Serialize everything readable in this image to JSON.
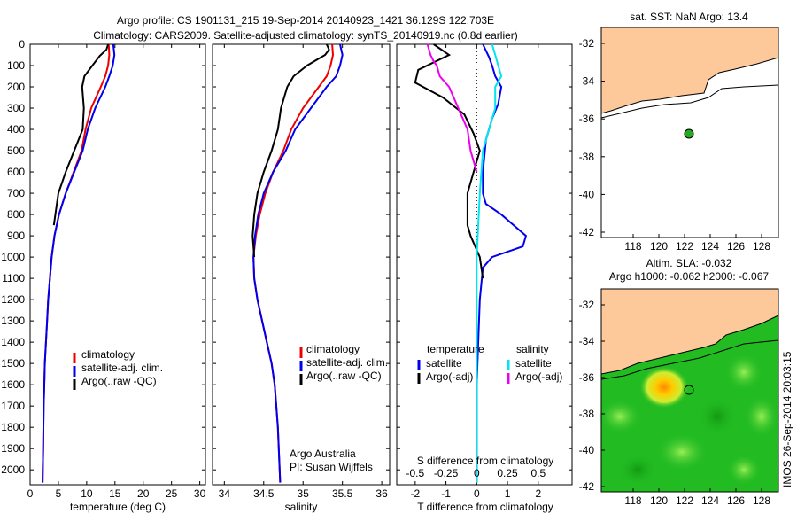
{
  "header": {
    "line1": "Argo profile: CS 1901131_215 19-Sep-2014 20140923_1421 36.129S 122.703E",
    "line2": "Climatology: CARS2009. Satellite-adjusted climatology: synTS_20140919.nc (0.8d earlier)"
  },
  "vertical_stamp": "IMOS 26-Sep-2014 20:03:15",
  "depth_ticks": [
    0,
    100,
    200,
    300,
    400,
    500,
    600,
    700,
    800,
    900,
    1000,
    1100,
    1200,
    1300,
    1400,
    1500,
    1600,
    1700,
    1800,
    1900,
    2000
  ],
  "colors": {
    "clim": "#ee0000",
    "sat": "#0000ee",
    "argo": "#000000",
    "s_sat": "#00e5ee",
    "s_argo": "#ee00ee",
    "land": "#fdc99a",
    "sst_water": "#ffffff",
    "sla_water": "#22bb22"
  },
  "chart_data": [
    {
      "type": "line",
      "panel": "temperature",
      "xlabel": "temperature (deg C)",
      "xlim": [
        0,
        31
      ],
      "xticks": [
        0,
        5,
        10,
        15,
        20,
        25,
        30
      ],
      "ylim": [
        0,
        2070
      ],
      "legend": {
        "position": "bottom-center",
        "items": [
          "climatology",
          "satellite-adj. clim.",
          "Argo(..raw -QC)"
        ]
      },
      "series": [
        {
          "name": "climatology",
          "color": "#ee0000",
          "x": [
            13.9,
            14.0,
            13.8,
            13.3,
            12.5,
            10.8,
            9.8,
            9.1,
            7.7,
            6.3,
            5.1,
            4.3,
            3.8,
            3.5,
            3.2,
            3.0,
            2.8,
            2.6,
            2.5,
            2.4,
            2.3,
            2.2
          ],
          "y": [
            0,
            50,
            100,
            150,
            200,
            300,
            400,
            500,
            600,
            700,
            800,
            900,
            1000,
            1100,
            1200,
            1300,
            1400,
            1500,
            1600,
            1700,
            1900,
            2060
          ]
        },
        {
          "name": "satellite-adj. clim.",
          "color": "#0000ee",
          "x": [
            14.7,
            14.9,
            14.6,
            14.0,
            13.3,
            11.5,
            10.2,
            9.3,
            7.8,
            6.3,
            5.1,
            4.3,
            3.8,
            3.5,
            3.2,
            3.0,
            2.8,
            2.6,
            2.5,
            2.4,
            2.3,
            2.2
          ],
          "y": [
            0,
            50,
            100,
            150,
            200,
            300,
            400,
            500,
            600,
            700,
            800,
            900,
            1000,
            1100,
            1200,
            1300,
            1400,
            1500,
            1600,
            1700,
            1900,
            2060
          ]
        },
        {
          "name": "Argo(..raw -QC)",
          "color": "#000000",
          "x": [
            13.8,
            13.5,
            12.3,
            11.0,
            9.6,
            9.2,
            9.5,
            9.3,
            7.8,
            6.3,
            5.0,
            4.2
          ],
          "y": [
            0,
            25,
            55,
            100,
            150,
            200,
            300,
            400,
            500,
            600,
            700,
            850
          ]
        }
      ]
    },
    {
      "type": "line",
      "panel": "salinity",
      "xlabel": "salinity",
      "xlim": [
        33.85,
        36.1
      ],
      "xticks": [
        34,
        34.5,
        35,
        35.5,
        36
      ],
      "xtick_labels": [
        "34",
        "34.5",
        "35",
        "35.5",
        "36"
      ],
      "ylim": [
        0,
        2070
      ],
      "legend": {
        "position": "bottom-center",
        "items": [
          "climatology",
          "satellite-adj. clim.",
          "Argo(..raw -QC)"
        ]
      },
      "annotation": [
        "Argo Australia",
        "PI: Susan Wijffels"
      ],
      "series": [
        {
          "name": "climatology",
          "color": "#ee0000",
          "x": [
            35.37,
            35.38,
            35.35,
            35.3,
            35.2,
            35.0,
            34.85,
            34.75,
            34.62,
            34.52,
            34.45,
            34.4,
            34.37,
            34.38,
            34.42,
            34.48,
            34.54,
            34.6,
            34.64,
            34.68,
            34.71
          ],
          "y": [
            0,
            50,
            100,
            150,
            200,
            300,
            400,
            500,
            600,
            700,
            800,
            900,
            1000,
            1100,
            1200,
            1300,
            1400,
            1500,
            1600,
            1800,
            2060
          ]
        },
        {
          "name": "satellite-adj. clim.",
          "color": "#0000ee",
          "x": [
            35.47,
            35.5,
            35.47,
            35.42,
            35.3,
            35.1,
            34.9,
            34.78,
            34.62,
            34.5,
            34.43,
            34.39,
            34.37,
            34.38,
            34.42,
            34.48,
            34.54,
            34.6,
            34.64,
            34.68,
            34.71
          ],
          "y": [
            0,
            50,
            100,
            150,
            200,
            300,
            400,
            500,
            600,
            700,
            800,
            900,
            1000,
            1100,
            1200,
            1300,
            1400,
            1500,
            1600,
            1800,
            2060
          ]
        },
        {
          "name": "Argo(..raw -QC)",
          "color": "#000000",
          "x": [
            35.3,
            35.33,
            35.28,
            35.05,
            34.88,
            34.8,
            34.72,
            34.68,
            34.6,
            34.5,
            34.42,
            34.38,
            34.36,
            34.38
          ],
          "y": [
            0,
            25,
            50,
            100,
            150,
            200,
            300,
            400,
            500,
            600,
            700,
            800,
            900,
            1000
          ]
        }
      ]
    },
    {
      "type": "line",
      "panel": "differences",
      "xlabel": "T difference from climatology",
      "toplabel": "S difference from climatology",
      "xlim": [
        -2.6,
        3.1
      ],
      "xticks": [
        -2,
        -1,
        0,
        1,
        2
      ],
      "top_ticks": [
        "-0.5",
        "-0.25",
        "0",
        "0.25",
        "0.5"
      ],
      "ylim": [
        0,
        2070
      ],
      "legend_left": {
        "title": "temperature",
        "items": [
          "satellite",
          "Argo(-adj)"
        ]
      },
      "legend_right": {
        "title": "salinity",
        "items": [
          "satellite",
          "Argo(-adj)"
        ]
      },
      "series": [
        {
          "name": "temperature satellite",
          "color": "#0000ee",
          "x": [
            0.2,
            0.4,
            0.5,
            0.6,
            0.8,
            0.7,
            0.5,
            0.3,
            0.2,
            0.2,
            0.3,
            0.8,
            1.2,
            1.6,
            1.5,
            0.5,
            0.2,
            0.1,
            0.0,
            0.0
          ],
          "y": [
            0,
            60,
            100,
            150,
            200,
            280,
            350,
            450,
            600,
            700,
            750,
            800,
            850,
            900,
            950,
            1000,
            1050,
            1200,
            1600,
            2060
          ]
        },
        {
          "name": "temperature Argo(-adj)",
          "color": "#000000",
          "x": [
            -1.4,
            -0.9,
            -1.9,
            -2.0,
            -1.1,
            -0.4,
            -0.1,
            0.1,
            0.0,
            -0.3,
            -0.3,
            -0.2,
            0.1,
            0.2
          ],
          "y": [
            0,
            50,
            120,
            180,
            250,
            330,
            420,
            500,
            550,
            700,
            850,
            900,
            1000,
            1100
          ]
        },
        {
          "name": "salinity satellite",
          "color": "#00e5ee",
          "x": [
            0.5,
            0.6,
            0.7,
            0.8,
            0.6,
            0.6,
            0.4,
            0.2,
            0.1,
            0.0,
            0.0,
            0.0
          ],
          "y": [
            0,
            50,
            100,
            150,
            200,
            300,
            400,
            500,
            700,
            1000,
            1300,
            2060
          ]
        },
        {
          "name": "salinity Argo(-adj)",
          "color": "#ee00ee",
          "x": [
            -1.6,
            -1.5,
            -1.4,
            -1.3,
            -1.2,
            -0.9,
            -0.6,
            -0.3,
            -0.2,
            0.0
          ],
          "y": [
            0,
            50,
            80,
            100,
            150,
            200,
            300,
            400,
            500,
            600
          ]
        }
      ]
    }
  ],
  "map_sst": {
    "title": "sat. SST: NaN Argo: 13.4",
    "lat_ticks": [
      "-32",
      "-34",
      "-36",
      "-38",
      "-40",
      "-42"
    ],
    "lon_ticks": [
      "118",
      "120",
      "122",
      "124",
      "126",
      "128"
    ]
  },
  "map_sla": {
    "title1": "Altim. SLA: -0.032",
    "title2": "Argo h1000: -0.062 h2000: -0.067",
    "lat_ticks": [
      "-32",
      "-34",
      "-36",
      "-38",
      "-40",
      "-42"
    ],
    "lon_ticks": [
      "118",
      "120",
      "122",
      "124",
      "126",
      "128"
    ]
  }
}
